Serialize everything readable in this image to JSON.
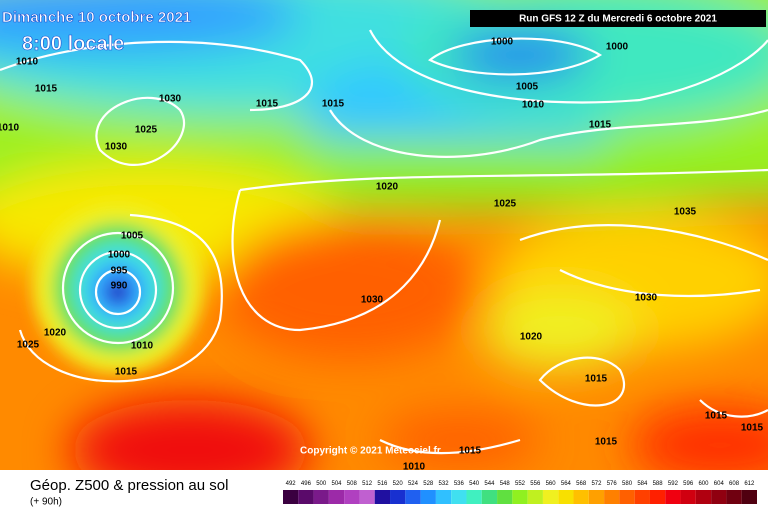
{
  "header": {
    "date": "Dimanche 10 octobre 2021",
    "time": "8:00 locale",
    "run": "Run GFS 12 Z du Mercredi 6 octobre 2021"
  },
  "copyright": "Copyright © 2021 Meteociel.fr",
  "isobar_labels": [
    1010,
    1015,
    1010,
    1030,
    1025,
    1030,
    1015,
    1015,
    1000,
    1000,
    1005,
    1010,
    1015,
    1020,
    1025,
    1035,
    1005,
    1000,
    995,
    990,
    1030,
    1030,
    1020,
    1025,
    1010,
    1015,
    1020,
    1015,
    1015,
    1015,
    1015,
    1015,
    1010
  ],
  "legend": {
    "title": "Géop. Z500 & pression au sol",
    "lead": "(+ 90h)",
    "scale": [
      492,
      496,
      500,
      504,
      508,
      512,
      516,
      520,
      524,
      528,
      532,
      536,
      540,
      544,
      548,
      552,
      556,
      560,
      564,
      568,
      572,
      576,
      580,
      584,
      588,
      592,
      596,
      600,
      604,
      608,
      612
    ],
    "colors": [
      "#3a0040",
      "#5a0a6a",
      "#7a1a8a",
      "#9c2aa8",
      "#b040c0",
      "#c060d0",
      "#2010a0",
      "#1830d0",
      "#2060f0",
      "#2090ff",
      "#30c0ff",
      "#40e0f0",
      "#40f0c0",
      "#40e080",
      "#60e040",
      "#90f020",
      "#c0f020",
      "#f0f020",
      "#f8e000",
      "#ffc000",
      "#ffa000",
      "#ff8000",
      "#ff6000",
      "#ff4000",
      "#ff2000",
      "#f00010",
      "#d00010",
      "#b00010",
      "#900010",
      "#700010",
      "#500010"
    ]
  }
}
